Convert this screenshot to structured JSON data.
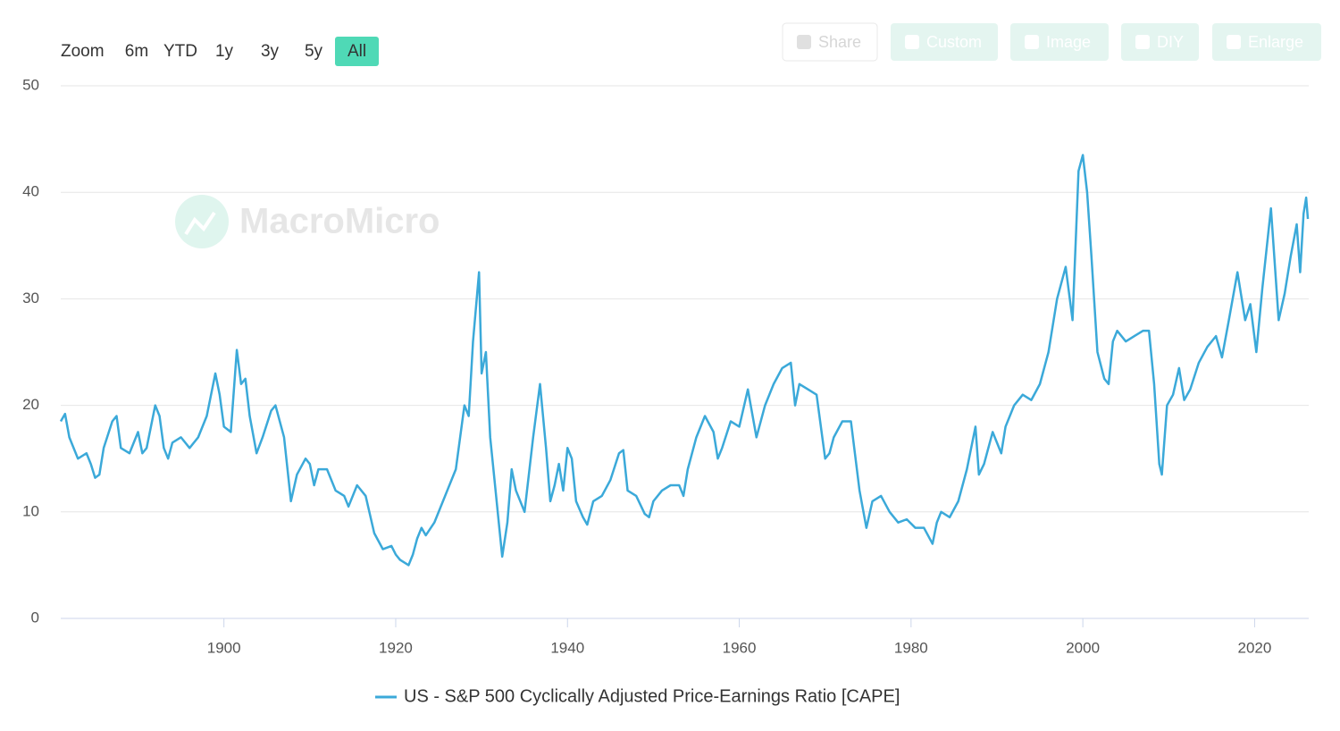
{
  "range_selector": {
    "label": "Zoom",
    "buttons": [
      "6m",
      "YTD",
      "1y",
      "3y",
      "5y",
      "All"
    ],
    "selected": 5
  },
  "toolbar": [
    "Share",
    "Custom",
    "Image",
    "DIY",
    "Enlarge"
  ],
  "watermark": "MacroMicro",
  "chart_data": {
    "type": "line",
    "x": [
      1881,
      1881.5,
      1882,
      1883,
      1884,
      1884.5,
      1885,
      1885.5,
      1886,
      1887,
      1887.5,
      1888,
      1889,
      1890,
      1890.5,
      1891,
      1892,
      1892.5,
      1893,
      1893.5,
      1894,
      1895,
      1896,
      1897,
      1898,
      1899,
      1899.5,
      1900,
      1900.8,
      1901.5,
      1902,
      1902.5,
      1903,
      1903.8,
      1904.5,
      1905.5,
      1906,
      1907,
      1907.8,
      1908.5,
      1909.5,
      1910,
      1910.5,
      1911,
      1912,
      1913,
      1914,
      1914.5,
      1915.5,
      1916.5,
      1917.5,
      1918.5,
      1919.5,
      1920,
      1920.5,
      1921.5,
      1922,
      1922.5,
      1923,
      1923.5,
      1924.5,
      1925.5,
      1926,
      1927,
      1928,
      1928.5,
      1929,
      1929.7,
      1930,
      1930.5,
      1931,
      1931.5,
      1932,
      1932.4,
      1933,
      1933.5,
      1934,
      1935,
      1936,
      1936.8,
      1937.5,
      1938,
      1938.5,
      1939,
      1939.5,
      1940,
      1940.5,
      1941,
      1941.8,
      1942.3,
      1943,
      1944,
      1945,
      1946,
      1946.5,
      1947,
      1948,
      1949,
      1949.5,
      1950,
      1951,
      1952,
      1953,
      1953.5,
      1954,
      1955,
      1956,
      1957,
      1957.5,
      1958,
      1959,
      1960,
      1961,
      1962,
      1963,
      1964,
      1965,
      1966,
      1966.5,
      1967,
      1968,
      1969,
      1970,
      1970.5,
      1971,
      1972,
      1973,
      1974,
      1974.8,
      1975.5,
      1976.5,
      1977.5,
      1978.5,
      1979.5,
      1980.5,
      1981.5,
      1982.5,
      1983,
      1983.5,
      1984.5,
      1985.5,
      1986.5,
      1987.5,
      1987.9,
      1988.5,
      1989.5,
      1990.5,
      1991,
      1992,
      1993,
      1994,
      1995,
      1996,
      1997,
      1998,
      1998.8,
      1999.5,
      2000,
      2000.5,
      2001,
      2001.7,
      2002.5,
      2003,
      2003.5,
      2004,
      2005,
      2006,
      2007,
      2007.7,
      2008.3,
      2008.9,
      2009.2,
      2009.8,
      2010.5,
      2011.2,
      2011.8,
      2012.5,
      2013.5,
      2014.5,
      2015.5,
      2016.2,
      2017,
      2018,
      2018.9,
      2019.5,
      2020.2,
      2020.9,
      2021.9,
      2022.8,
      2023.5,
      2024.2,
      2024.9,
      2025.3,
      2025.7,
      2026,
      2026.2
    ],
    "series": [
      {
        "name": "US - S&P 500 Cyclically Adjusted Price-Earnings Ratio [CAPE]",
        "color": "#3ba9d9",
        "values": [
          18.5,
          19.2,
          17,
          15,
          15.5,
          14.5,
          13.2,
          13.5,
          16,
          18.5,
          19,
          16,
          15.5,
          17.5,
          15.5,
          16,
          20,
          19,
          16,
          15,
          16.5,
          17,
          16,
          17,
          19,
          23,
          21,
          18,
          17.5,
          25.2,
          22,
          22.5,
          19,
          15.5,
          17,
          19.5,
          20,
          17,
          11,
          13.5,
          15,
          14.5,
          12.5,
          14,
          14,
          12,
          11.5,
          10.5,
          12.5,
          11.5,
          8,
          6.5,
          6.8,
          6,
          5.5,
          5,
          6,
          7.5,
          8.5,
          7.8,
          9,
          11,
          12,
          14,
          20,
          19,
          26,
          32.5,
          23,
          25,
          17,
          13,
          9,
          5.8,
          9,
          14,
          12,
          10,
          17,
          22,
          16,
          11,
          12.5,
          14.5,
          12,
          16,
          15,
          11,
          9.5,
          8.8,
          11,
          11.5,
          13,
          15.5,
          15.8,
          12,
          11.5,
          9.8,
          9.5,
          11,
          12,
          12.5,
          12.5,
          11.5,
          14,
          17,
          19,
          17.5,
          15,
          16,
          18.5,
          18,
          21.5,
          17,
          20,
          22,
          23.5,
          24,
          20,
          22,
          21.5,
          21,
          15,
          15.5,
          17,
          18.5,
          18.5,
          12,
          8.5,
          11,
          11.5,
          10,
          9,
          9.3,
          8.5,
          8.5,
          7,
          9,
          10,
          9.5,
          11,
          14,
          18,
          13.5,
          14.5,
          17.5,
          15.5,
          18,
          20,
          21,
          20.5,
          22,
          25,
          30,
          33,
          28,
          42,
          43.5,
          40,
          34,
          25,
          22.5,
          22,
          26,
          27,
          26,
          26.5,
          27,
          27,
          22,
          14.5,
          13.5,
          20,
          21,
          23.5,
          20.5,
          21.5,
          24,
          25.5,
          26.5,
          24.5,
          28,
          32.5,
          28,
          29.5,
          25,
          31,
          38.5,
          28,
          30.5,
          34,
          37,
          32.5,
          38,
          39.5,
          37.5
        ]
      }
    ],
    "xlim": [
      1881,
      2026.3
    ],
    "xticks": [
      1900,
      1920,
      1940,
      1960,
      1980,
      2000,
      2020
    ],
    "ylim": [
      0,
      50
    ],
    "yticks": [
      0,
      10,
      20,
      30,
      40,
      50
    ],
    "grid": true,
    "legend": "bottom"
  }
}
